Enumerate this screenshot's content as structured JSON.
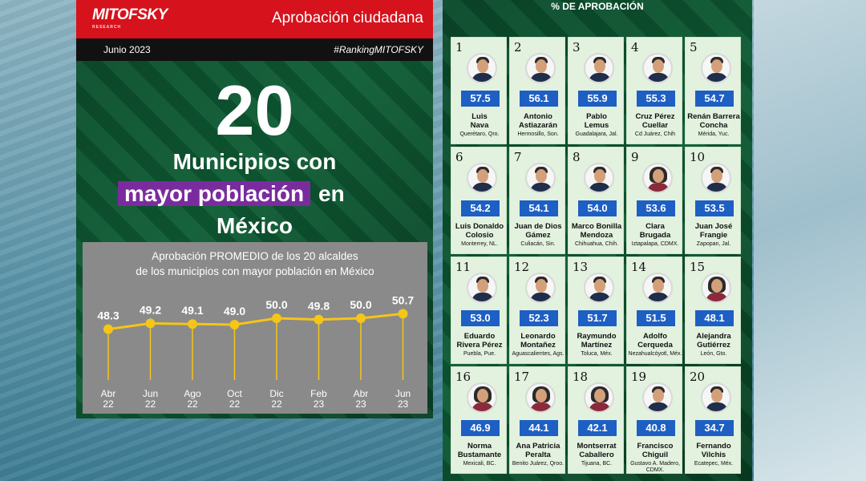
{
  "left": {
    "logo": "MITOFSKY",
    "logo_sub": "RESEARCH",
    "title": "Aprobación ciudadana",
    "date": "Junio 2023",
    "hashtag": "#RankingMITOFSKY",
    "big_number": "20",
    "headline_1": "Municipios con",
    "headline_2_highlight": "mayor población",
    "headline_2_rest": "en",
    "headline_3": "México"
  },
  "chart_data": {
    "type": "line",
    "title_line1": "Aprobación  PROMEDIO  de los 20 alcaldes",
    "title_line2": "de los municipios con mayor población en México",
    "categories": [
      [
        "Abr",
        "22"
      ],
      [
        "Jun",
        "22"
      ],
      [
        "Ago",
        "22"
      ],
      [
        "Oct",
        "22"
      ],
      [
        "Dic",
        "22"
      ],
      [
        "Feb",
        "23"
      ],
      [
        "Abr",
        "23"
      ],
      [
        "Jun",
        "23"
      ]
    ],
    "values": [
      48.3,
      49.2,
      49.1,
      49.0,
      50.0,
      49.8,
      50.0,
      50.7
    ],
    "labels": [
      "48.3",
      "49.2",
      "49.1",
      "49.0",
      "50.0",
      "49.8",
      "50.0",
      "50.7"
    ],
    "ylim": [
      40,
      55
    ],
    "line_color": "#f5c518",
    "grid": false
  },
  "right": {
    "header": "% DE APROBACIÓN",
    "cards": [
      {
        "rank": "1",
        "score": "57.5",
        "name": [
          "Luis",
          "Nava"
        ],
        "place": [
          "Querétaro, Qro."
        ],
        "female": false
      },
      {
        "rank": "2",
        "score": "56.1",
        "name": [
          "Antonio",
          "Astiazarán"
        ],
        "place": [
          "Hermosillo, Son."
        ],
        "female": false
      },
      {
        "rank": "3",
        "score": "55.9",
        "name": [
          "Pablo",
          "Lemus"
        ],
        "place": [
          "Guadalajara, Jal."
        ],
        "female": false
      },
      {
        "rank": "4",
        "score": "55.3",
        "name": [
          "Cruz Pérez",
          "Cuellar"
        ],
        "place": [
          "Cd Juárez, Chih"
        ],
        "female": false
      },
      {
        "rank": "5",
        "score": "54.7",
        "name": [
          "Renán Barrera",
          "Concha"
        ],
        "place": [
          "Mérida, Yuc."
        ],
        "female": false
      },
      {
        "rank": "6",
        "score": "54.2",
        "name": [
          "Luis Donaldo",
          "Colosio"
        ],
        "place": [
          "Monterrey, NL."
        ],
        "female": false
      },
      {
        "rank": "7",
        "score": "54.1",
        "name": [
          "Juan de Dios",
          "Gámez"
        ],
        "place": [
          "Culiacán, Sin."
        ],
        "female": false
      },
      {
        "rank": "8",
        "score": "54.0",
        "name": [
          "Marco Bonilla",
          "Mendoza"
        ],
        "place": [
          "Chihuahua, Chih."
        ],
        "female": false
      },
      {
        "rank": "9",
        "score": "53.6",
        "name": [
          "Clara",
          "Brugada"
        ],
        "place": [
          "Iztapalapa, CDMX."
        ],
        "female": true
      },
      {
        "rank": "10",
        "score": "53.5",
        "name": [
          "Juan José",
          "Frangie"
        ],
        "place": [
          "Zapopan, Jal."
        ],
        "female": false
      },
      {
        "rank": "11",
        "score": "53.0",
        "name": [
          "Eduardo",
          "Rivera Pérez"
        ],
        "place": [
          "Puebla, Pue."
        ],
        "female": false
      },
      {
        "rank": "12",
        "score": "52.3",
        "name": [
          "Leonardo",
          "Montañez"
        ],
        "place": [
          "Aguascalientes, Ags."
        ],
        "female": false
      },
      {
        "rank": "13",
        "score": "51.7",
        "name": [
          "Raymundo",
          "Martínez"
        ],
        "place": [
          "Toluca, Méx."
        ],
        "female": false
      },
      {
        "rank": "14",
        "score": "51.5",
        "name": [
          "Adolfo",
          "Cerqueda"
        ],
        "place": [
          "Nezahualcóyotl, Méx."
        ],
        "female": false
      },
      {
        "rank": "15",
        "score": "48.1",
        "name": [
          "Alejandra",
          "Gutiérrez"
        ],
        "place": [
          "León, Gto."
        ],
        "female": true
      },
      {
        "rank": "16",
        "score": "46.9",
        "name": [
          "Norma",
          "Bustamante"
        ],
        "place": [
          "Mexicali, BC."
        ],
        "female": true
      },
      {
        "rank": "17",
        "score": "44.1",
        "name": [
          "Ana Patricia",
          "Peralta"
        ],
        "place": [
          "Benito Juárez, Qroo."
        ],
        "female": true
      },
      {
        "rank": "18",
        "score": "42.1",
        "name": [
          "Montserrat",
          "Caballero"
        ],
        "place": [
          "Tijuana, BC."
        ],
        "female": true
      },
      {
        "rank": "19",
        "score": "40.8",
        "name": [
          "Francisco",
          "Chiguil"
        ],
        "place": [
          "Gustavo A. Madero,",
          "CDMX."
        ],
        "female": false
      },
      {
        "rank": "20",
        "score": "34.7",
        "name": [
          "Fernando",
          "Vilchis"
        ],
        "place": [
          "Ecatepec, Méx."
        ],
        "female": false
      }
    ]
  }
}
